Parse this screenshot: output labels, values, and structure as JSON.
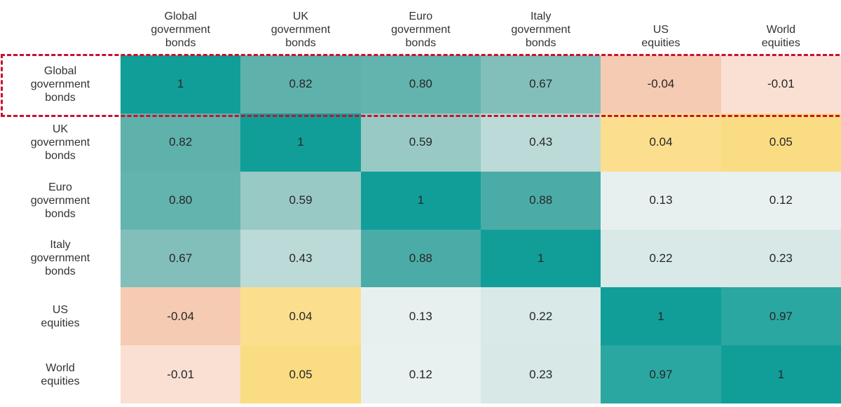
{
  "chart_data": {
    "type": "heatmap",
    "categories": [
      "Global government bonds",
      "UK government bonds",
      "Euro government bonds",
      "Italy government bonds",
      "US equities",
      "World equities"
    ],
    "column_headers": [
      "Global\ngovernment\nbonds",
      "UK\ngovernment\nbonds",
      "Euro\ngovernment\nbonds",
      "Italy\ngovernment\nbonds",
      "US\nequities",
      "World\nequities"
    ],
    "row_labels": [
      "Global\ngovernment\nbonds",
      "UK\ngovernment\nbonds",
      "Euro\ngovernment\nbonds",
      "Italy\ngovernment\nbonds",
      "US\nequities",
      "World\nequities"
    ],
    "matrix": [
      [
        1,
        0.82,
        0.8,
        0.67,
        -0.04,
        -0.01
      ],
      [
        0.82,
        1,
        0.59,
        0.43,
        0.04,
        0.05
      ],
      [
        0.8,
        0.59,
        1,
        0.88,
        0.13,
        0.12
      ],
      [
        0.67,
        0.43,
        0.88,
        1,
        0.22,
        0.23
      ],
      [
        -0.04,
        0.04,
        0.13,
        0.22,
        1,
        0.97
      ],
      [
        -0.01,
        0.05,
        0.12,
        0.23,
        0.97,
        1
      ]
    ],
    "cell_labels": [
      [
        "1",
        "0.82",
        "0.80",
        "0.67",
        "-0.04",
        "-0.01"
      ],
      [
        "0.82",
        "1",
        "0.59",
        "0.43",
        "0.04",
        "0.05"
      ],
      [
        "0.80",
        "0.59",
        "1",
        "0.88",
        "0.13",
        "0.12"
      ],
      [
        "0.67",
        "0.43",
        "0.88",
        "1",
        "0.22",
        "0.23"
      ],
      [
        "-0.04",
        "0.04",
        "0.13",
        "0.22",
        "1",
        "0.97"
      ],
      [
        "-0.01",
        "0.05",
        "0.12",
        "0.23",
        "0.97",
        "1"
      ]
    ],
    "value_colors": {
      "1": "#119E99",
      "0.97": "#2BA7A2",
      "0.88": "#4BACA7",
      "0.82": "#5FB1AC",
      "0.80": "#63B3AE",
      "0.67": "#82BFBB",
      "0.59": "#98C9C5",
      "0.43": "#BCDAD7",
      "0.23": "#D7E8E6",
      "0.22": "#D8E9E7",
      "0.13": "#E7F0EF",
      "0.12": "#E8F1F0",
      "0.05": "#FADC82",
      "0.04": "#FBDF8F",
      "-0.01": "#FAE0D3",
      "-0.04": "#F6CBB3"
    },
    "legend_position": "none",
    "grid": false
  },
  "highlight": {
    "target_row": "Global government bonds",
    "row_index": 0,
    "border_color": "#C8102E",
    "border_style": "dashed"
  },
  "colors": {
    "background": "#FFFFFF",
    "text": "#2E2E2E"
  }
}
